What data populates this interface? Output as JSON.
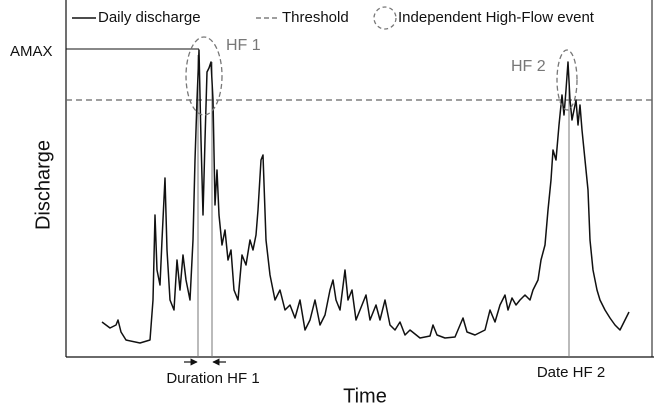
{
  "legend": {
    "line": "Daily discharge",
    "threshold": "Threshold",
    "event": "Independent High-Flow event"
  },
  "labels": {
    "amax": "AMAX",
    "hf1": "HF 1",
    "hf2": "HF 2",
    "duration": "Duration HF 1",
    "date": "Date HF 2"
  },
  "axes": {
    "x": "Time",
    "y": "Discharge"
  }
}
